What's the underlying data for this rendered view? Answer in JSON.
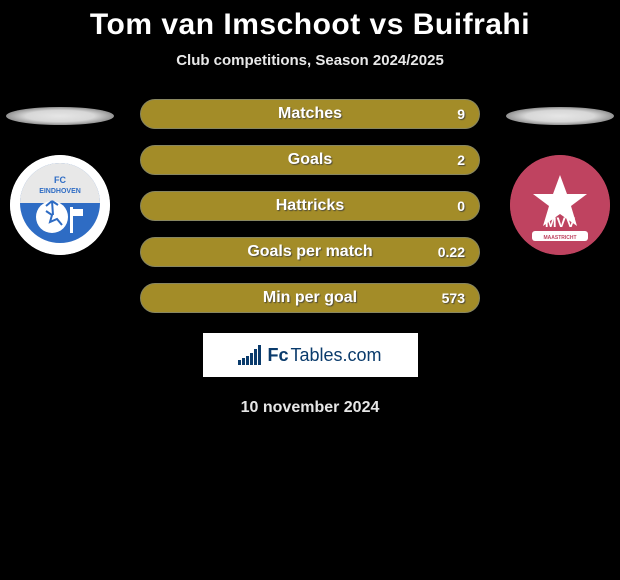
{
  "title": "Tom van Imschoot vs Buifrahi",
  "title_color": "#ffffff",
  "subtitle": "Club competitions, Season 2024/2025",
  "date": "10 november 2024",
  "background_color": "#000000",
  "bar_background": "#a38c28",
  "bar_border": "#888660",
  "bars": [
    {
      "label": "Matches",
      "value_left": "",
      "value_right": "9"
    },
    {
      "label": "Goals",
      "value_left": "",
      "value_right": "2"
    },
    {
      "label": "Hattricks",
      "value_left": "",
      "value_right": "0"
    },
    {
      "label": "Goals per match",
      "value_left": "",
      "value_right": "0.22"
    },
    {
      "label": "Min per goal",
      "value_left": "",
      "value_right": "573"
    }
  ],
  "brand": {
    "fc": "Fc",
    "tables": "Tables.com",
    "color": "#0a3b6c",
    "background": "#ffffff",
    "icon_bar_heights": [
      5,
      7,
      9,
      12,
      16,
      20
    ]
  },
  "clubs": {
    "left": {
      "name": "FC EINDHOVEN",
      "badge_bg": "#ffffff",
      "accent": "#2e6cc4"
    },
    "right": {
      "name": "MVV",
      "badge_bg": "#c0475e",
      "accent": "#ffffff"
    }
  }
}
